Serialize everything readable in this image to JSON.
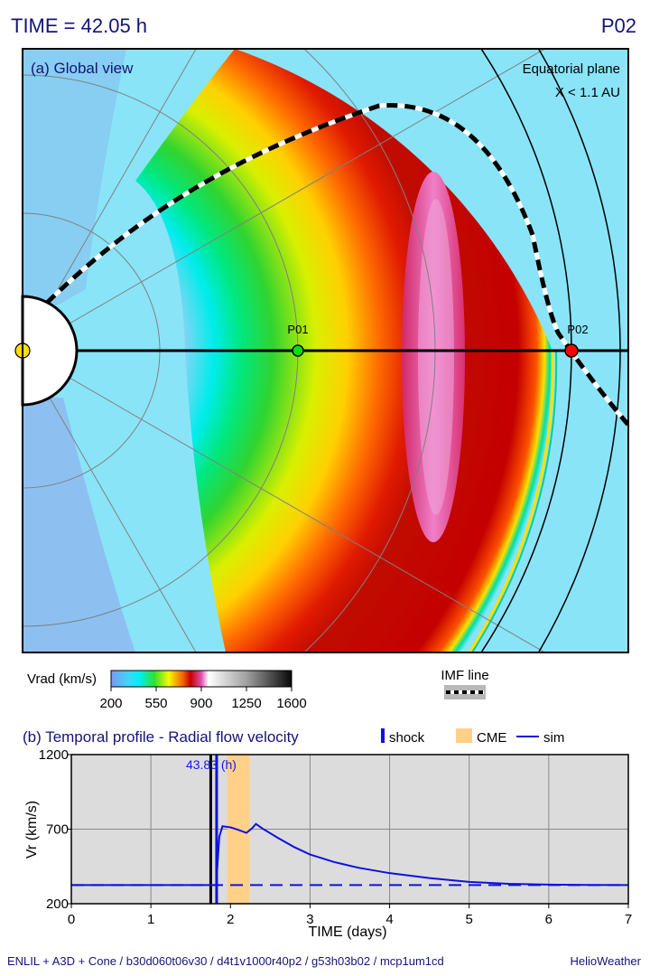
{
  "header": {
    "time_label": "TIME = 42.05 h",
    "probe_label": "P02"
  },
  "global_view": {
    "title": "(a) Global view",
    "plane_label": "Equatorial plane",
    "range_label": "X < 1.1 AU",
    "markers": [
      {
        "label": "P01",
        "color": "#00e000"
      },
      {
        "label": "P02",
        "color": "#ff0000"
      }
    ],
    "sun_color": "#ffe000"
  },
  "colorbar": {
    "label": "Vrad (km/s)",
    "ticks": [
      "200",
      "550",
      "900",
      "1250",
      "1600"
    ],
    "min": 200,
    "max": 1600
  },
  "imf_legend": {
    "label": "IMF line"
  },
  "legend": {
    "shock": "shock",
    "cme": "CME",
    "sim": "sim"
  },
  "chart_data": {
    "type": "line",
    "title": "(b) Temporal profile - Radial flow velocity",
    "xlabel": "TIME (days)",
    "ylabel": "Vr (km/s)",
    "xlim": [
      0,
      7
    ],
    "ylim": [
      200,
      1200
    ],
    "x_ticks": [
      "0",
      "1",
      "2",
      "3",
      "4",
      "5",
      "6",
      "7"
    ],
    "y_ticks": [
      "200",
      "700",
      "1200"
    ],
    "grid": true,
    "legend_position": "top-right",
    "current_time_days": 1.752,
    "shock_time_days": 1.826,
    "shock_label": "43.83 (h)",
    "cme_interval_days": [
      1.96,
      2.24
    ],
    "series": [
      {
        "name": "sim",
        "x": [
          0,
          1.0,
          1.7,
          1.82,
          1.86,
          1.9,
          2.0,
          2.1,
          2.2,
          2.27,
          2.32,
          2.4,
          2.6,
          2.8,
          3.0,
          3.3,
          3.6,
          4.0,
          4.5,
          5.0,
          5.5,
          6.0,
          6.5,
          7.0
        ],
        "y": [
          325,
          325,
          325,
          325,
          650,
          720,
          712,
          695,
          675,
          705,
          735,
          705,
          640,
          580,
          530,
          480,
          442,
          405,
          372,
          346,
          333,
          328,
          326,
          325
        ]
      },
      {
        "name": "",
        "style": "dashed",
        "x": [
          0,
          7
        ],
        "y": [
          325,
          325
        ]
      }
    ]
  },
  "footer": {
    "config": "ENLIL + A3D + Cone / b30d060t06v30 / d4t1v1000r40p2 / g53h03b02 / mcp1um1cd",
    "brand": "HelioWeather"
  }
}
